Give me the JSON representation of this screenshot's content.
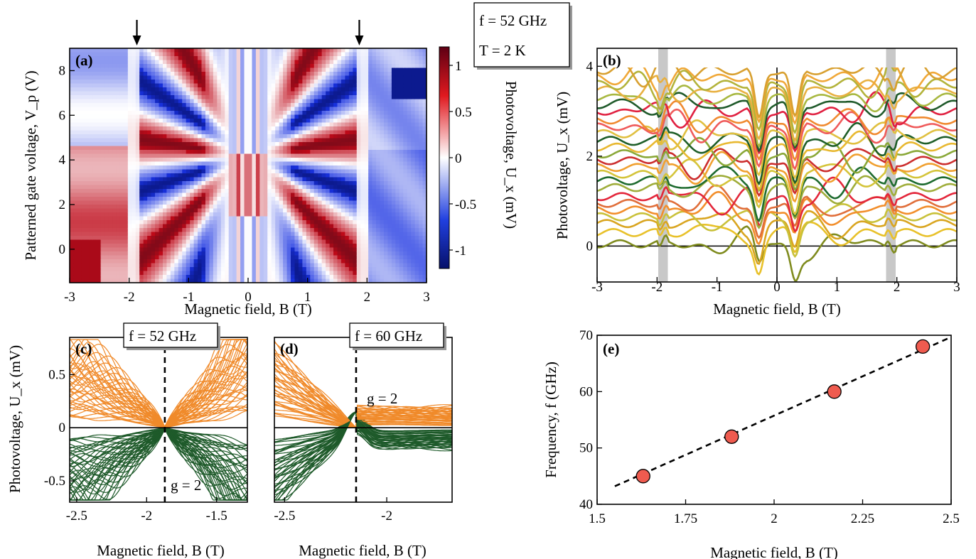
{
  "conditions": {
    "freq": "f = 52 GHz",
    "temp": "T = 2 K"
  },
  "chart_data": [
    {
      "id": "a",
      "type": "heatmap",
      "panel_label": "(a)",
      "xlabel": "Magnetic field, B (T)",
      "ylabel": "Patterned gate voltage, V_p (V)",
      "colorbar_label": "Photovoltage, U_x (mV)",
      "xlim": [
        -3,
        3
      ],
      "ylim": [
        -1.5,
        9
      ],
      "xticks": [
        "-3",
        "-2",
        "-1",
        "0",
        "1",
        "2",
        "3"
      ],
      "yticks": [
        "0",
        "2",
        "4",
        "6",
        "8"
      ],
      "colorbar_ticks": [
        "1",
        "0.5",
        "0",
        "-0.5",
        "-1"
      ],
      "colorbar_range": [
        -1.2,
        1.2
      ],
      "arrows_at_B": [
        -1.87,
        1.87
      ],
      "colors": {
        "positive": "#a50026",
        "negative": "#08136e",
        "zero": "#ffffff"
      }
    },
    {
      "id": "b",
      "type": "line",
      "panel_label": "(b)",
      "xlabel": "Magnetic field, B (T)",
      "ylabel": "Photovoltage, U_x (mV)",
      "xlim": [
        -3,
        3
      ],
      "ylim": [
        -0.8,
        4.4
      ],
      "xticks": [
        "-3",
        "-2",
        "-1",
        "0",
        "1",
        "2",
        "3"
      ],
      "yticks": [
        "0",
        "2",
        "4"
      ],
      "shaded_bands_B": [
        [
          -1.98,
          -1.82
        ],
        [
          1.82,
          1.98
        ]
      ],
      "series_offsets": [
        0.05,
        0.3,
        0.5,
        0.65,
        0.8,
        0.95,
        1.1,
        1.3,
        1.45,
        1.6,
        1.75,
        1.9,
        2.05,
        2.2,
        2.35,
        2.5,
        2.65,
        2.8,
        3.0,
        3.15,
        3.3,
        3.45,
        3.6,
        3.75,
        3.9
      ],
      "series_colors": [
        "#7f8b1e",
        "#e8c12a",
        "#d9a520",
        "#c9c13a",
        "#f28e2b",
        "#e06e3a",
        "#e3263a",
        "#9fad3a",
        "#1e6b2f",
        "#d4c43a",
        "#f0a030",
        "#cc2e2e",
        "#8aa838",
        "#e8b830",
        "#1e5e28",
        "#e0c040",
        "#ef5b5b",
        "#f08a30",
        "#e02040",
        "#1f5a2a",
        "#a8b840",
        "#e8b040",
        "#b3b33a",
        "#f0a838",
        "#d8a030"
      ]
    },
    {
      "id": "c",
      "type": "line",
      "panel_label": "(c)",
      "annotation_box": "f = 52 GHz",
      "xlabel": "Magnetic field, B (T)",
      "ylabel": "Photovoltage, U_x (mV)",
      "xlim": [
        -2.55,
        -1.28
      ],
      "ylim": [
        -0.7,
        0.85
      ],
      "xticks": [
        "-2.5",
        "-2",
        "-1.5"
      ],
      "yticks": [
        "0.5",
        "0",
        "-0.5"
      ],
      "vline_B": -1.87,
      "vline_label": "g = 2",
      "colors": {
        "positive": "#f08a2a",
        "negative": "#1e5a2a"
      }
    },
    {
      "id": "d",
      "type": "line",
      "panel_label": "(d)",
      "annotation_box": "f = 60 GHz",
      "xlabel": "Magnetic field, B (T)",
      "xlim": [
        -2.55,
        -1.68
      ],
      "ylim": [
        -0.7,
        0.85
      ],
      "xticks": [
        "-2.5",
        "-2"
      ],
      "vline_B": -2.15,
      "vline_label": "g = 2",
      "colors": {
        "positive": "#f08a2a",
        "negative": "#1e5a2a"
      }
    },
    {
      "id": "e",
      "type": "scatter",
      "panel_label": "(e)",
      "xlabel": "Magnetic field, B (T)",
      "ylabel": "Frequency, f (GHz)",
      "xlim": [
        1.5,
        2.5
      ],
      "ylim": [
        40,
        70
      ],
      "xticks": [
        "1.5",
        "1.75",
        "2",
        "2.25",
        "2.5"
      ],
      "yticks": [
        "40",
        "50",
        "60",
        "70"
      ],
      "points": [
        [
          1.63,
          45
        ],
        [
          1.88,
          52
        ],
        [
          2.17,
          60
        ],
        [
          2.42,
          68
        ]
      ],
      "fit_line": [
        [
          1.55,
          43.2
        ],
        [
          2.49,
          69.4
        ]
      ],
      "colors": {
        "marker": "#ef5b4f",
        "marker_edge": "#000000"
      }
    }
  ]
}
